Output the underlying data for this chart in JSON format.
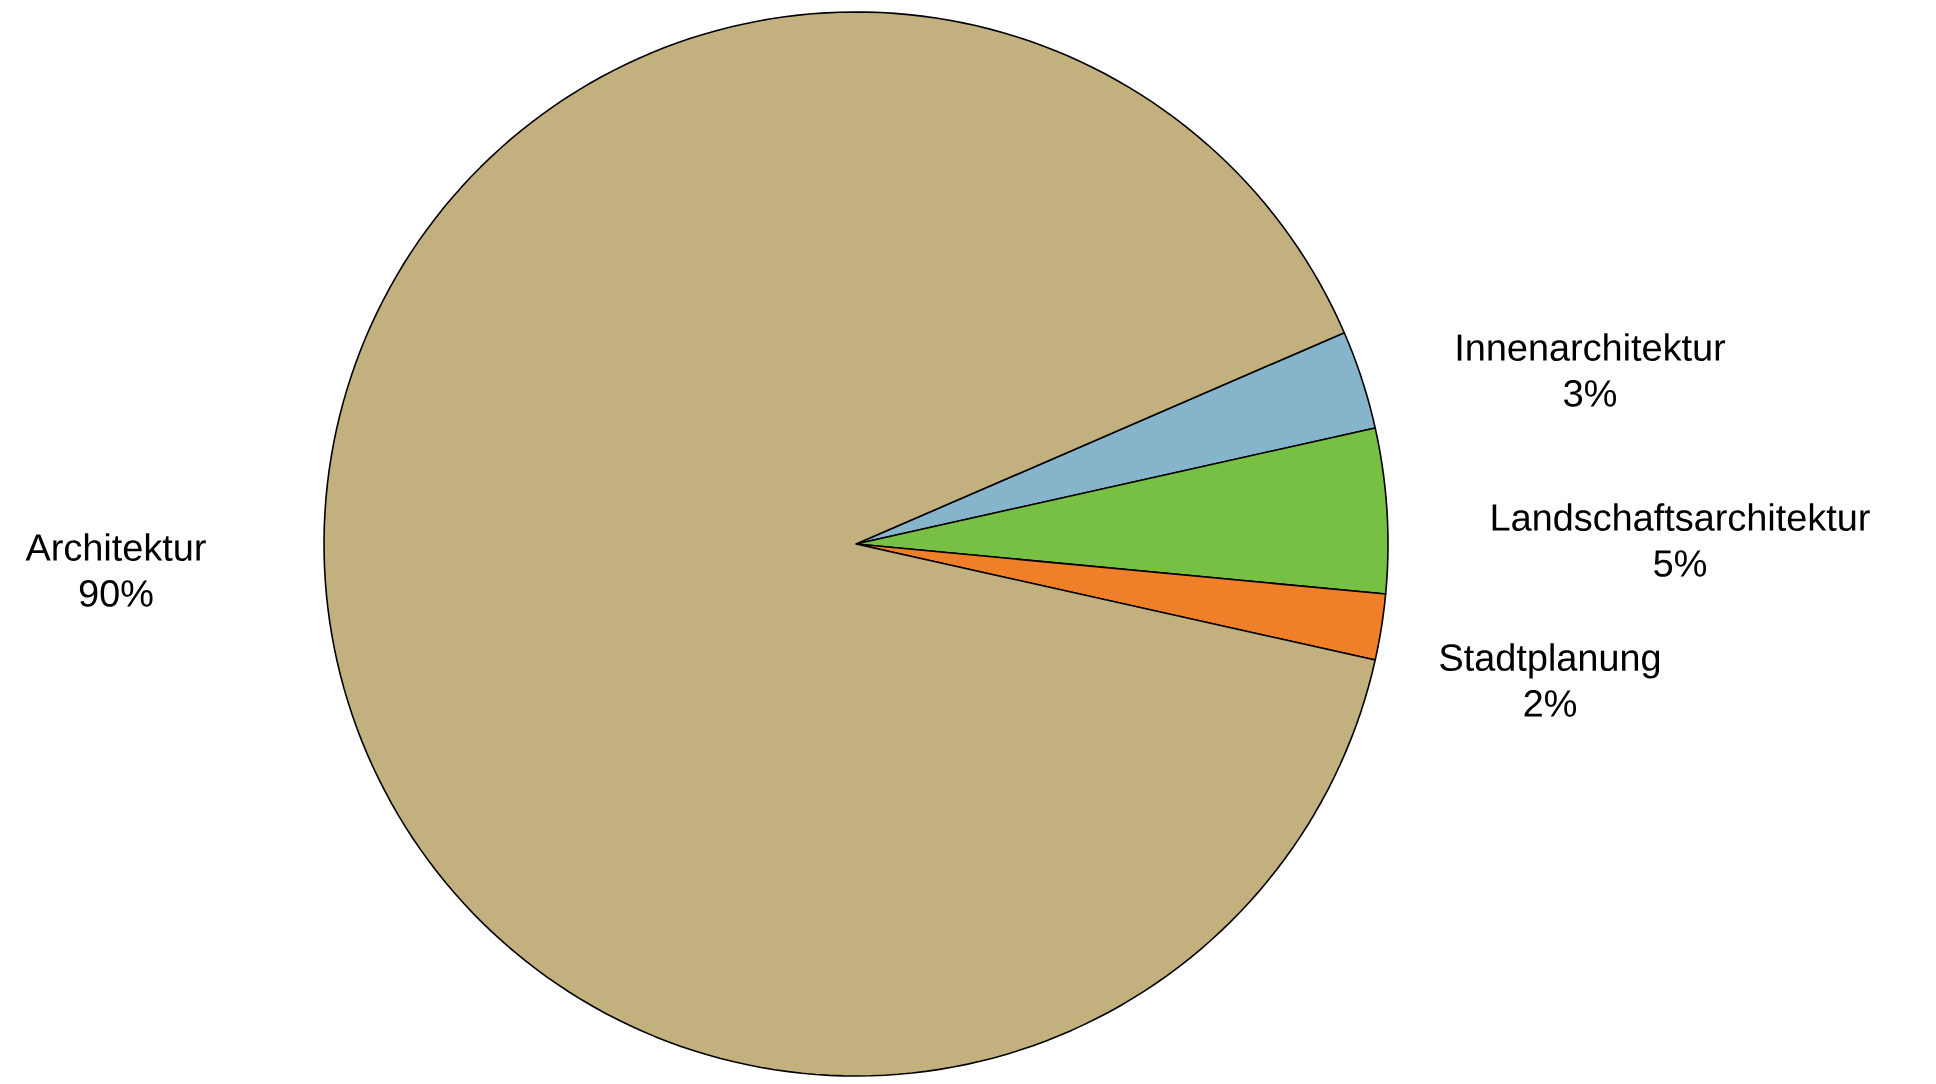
{
  "chart_data": {
    "type": "pie",
    "categories": [
      "Innenarchitektur",
      "Landschaftsarchitektur",
      "Stadtplanung",
      "Architektur"
    ],
    "values": [
      3,
      5,
      2,
      90
    ],
    "value_labels": [
      "3%",
      "5%",
      "2%",
      "90%"
    ],
    "colors": [
      "#86b5cb",
      "#77c043",
      "#f07f2a",
      "#c2b07e"
    ]
  }
}
